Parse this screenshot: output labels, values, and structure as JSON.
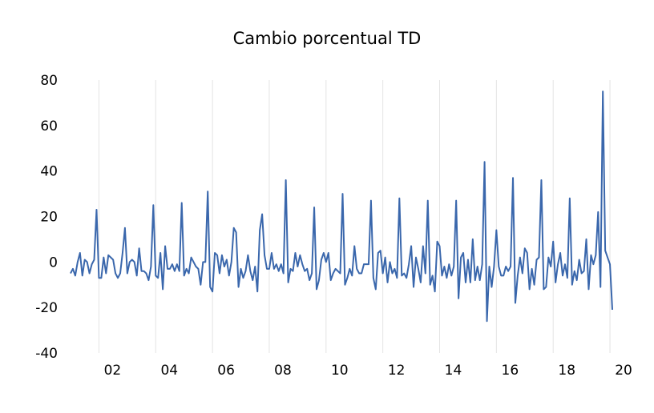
{
  "chart_data": {
    "type": "line",
    "title": "Cambio porcentual TD",
    "xlabel": "",
    "ylabel": "",
    "ylim": [
      -40,
      80
    ],
    "y_ticks": [
      "80",
      "60",
      "40",
      "20",
      "0",
      "-20",
      "-40"
    ],
    "x_tick_labels": [
      "02",
      "04",
      "06",
      "08",
      "10",
      "12",
      "14",
      "16",
      "18",
      "20"
    ],
    "x_start": "2001-01",
    "x_end": "2020-04",
    "frequency": "monthly",
    "grid": "vertical",
    "legend": "none",
    "line_color": "#3a67ac",
    "series": [
      {
        "values": [
          -5,
          -3,
          -6,
          0,
          4,
          -6,
          1,
          0,
          -5,
          -1,
          1,
          23,
          -7,
          -7,
          2,
          -5,
          3,
          2,
          1,
          -5,
          -7,
          -5,
          4,
          15,
          -5,
          0,
          1,
          0,
          -6,
          6,
          -4,
          -4,
          -5,
          -8,
          -2,
          25,
          -6,
          -7,
          4,
          -12,
          7,
          -3,
          -3,
          -1,
          -4,
          -1,
          -4,
          26,
          -6,
          -3,
          -5,
          2,
          0,
          -2,
          -3,
          -10,
          0,
          0,
          31,
          -11,
          -13,
          4,
          3,
          -5,
          3,
          -2,
          1,
          -6,
          0,
          15,
          13,
          -11,
          -3,
          -7,
          -4,
          3,
          -4,
          -8,
          -2,
          -13,
          14,
          21,
          3,
          -3,
          -3,
          4,
          -3,
          -1,
          -4,
          -1,
          -5,
          36,
          -9,
          -3,
          -4,
          4,
          -2,
          3,
          -1,
          -4,
          -3,
          -8,
          -5,
          24,
          -12,
          -8,
          1,
          4,
          0,
          4,
          -8,
          -5,
          -3,
          -4,
          -5,
          30,
          -10,
          -7,
          -3,
          -6,
          7,
          -3,
          -5,
          -5,
          -1,
          -1,
          -1,
          27,
          -7,
          -12,
          4,
          5,
          -5,
          2,
          -9,
          0,
          -5,
          -3,
          -7,
          28,
          -6,
          -5,
          -7,
          -1,
          7,
          -11,
          2,
          -3,
          -9,
          7,
          -5,
          27,
          -10,
          -6,
          -13,
          9,
          7,
          -6,
          -2,
          -7,
          -1,
          -6,
          -2,
          27,
          -16,
          2,
          4,
          -9,
          1,
          -9,
          10,
          -8,
          -2,
          -8,
          -1,
          44,
          -26,
          -2,
          -11,
          -2,
          14,
          -2,
          -6,
          -6,
          -2,
          -4,
          -2,
          37,
          -18,
          -6,
          2,
          -5,
          6,
          4,
          -12,
          -3,
          -10,
          1,
          2,
          36,
          -12,
          -11,
          2,
          -2,
          9,
          -9,
          -1,
          4,
          -6,
          -1,
          -7,
          28,
          -10,
          -4,
          -8,
          1,
          -5,
          -4,
          10,
          -12,
          3,
          -1,
          3,
          22,
          -11,
          75,
          5,
          2,
          -1,
          -21
        ]
      }
    ]
  }
}
